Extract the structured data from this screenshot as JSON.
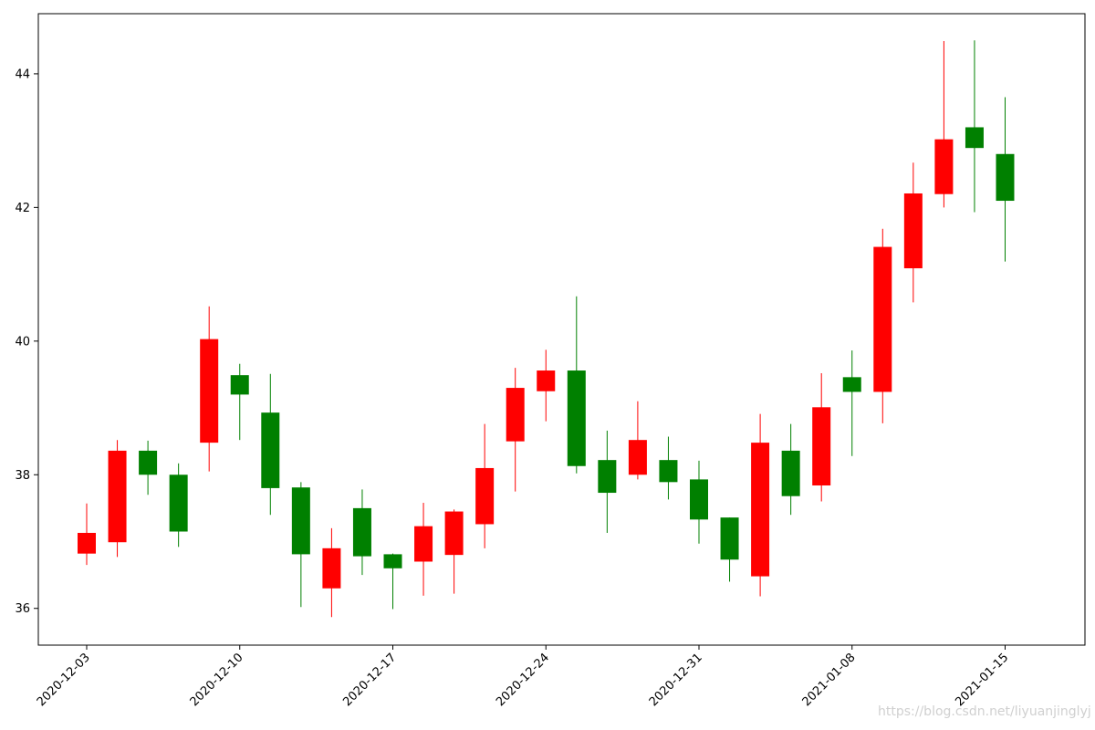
{
  "chart_data": {
    "type": "candlestick",
    "title": "",
    "xlabel": "",
    "ylabel": "",
    "ylim": [
      35.45,
      44.9
    ],
    "y_ticks": [
      36,
      38,
      40,
      42,
      44
    ],
    "y_tick_labels": [
      "36",
      "38",
      "40",
      "42",
      "44"
    ],
    "x_tick_labels": [
      "2020-12-03",
      "2020-12-10",
      "2020-12-17",
      "2020-12-24",
      "2020-12-31",
      "2021-01-08",
      "2021-01-15"
    ],
    "x_tick_candle_index": [
      0,
      5,
      10,
      15,
      20,
      25,
      30
    ],
    "up_color": "#ff0000",
    "down_color": "#008000",
    "grid": false,
    "candles": [
      {
        "open": 36.82,
        "high": 37.57,
        "low": 36.65,
        "close": 37.13
      },
      {
        "open": 36.99,
        "high": 38.52,
        "low": 36.77,
        "close": 38.36
      },
      {
        "open": 38.36,
        "high": 38.51,
        "low": 37.7,
        "close": 38.0
      },
      {
        "open": 38.0,
        "high": 38.17,
        "low": 36.92,
        "close": 37.15
      },
      {
        "open": 38.48,
        "high": 40.52,
        "low": 38.05,
        "close": 40.03
      },
      {
        "open": 39.49,
        "high": 39.66,
        "low": 38.52,
        "close": 39.2
      },
      {
        "open": 38.93,
        "high": 39.51,
        "low": 37.4,
        "close": 37.8
      },
      {
        "open": 37.81,
        "high": 37.89,
        "low": 36.02,
        "close": 36.81
      },
      {
        "open": 36.3,
        "high": 37.2,
        "low": 35.87,
        "close": 36.9
      },
      {
        "open": 37.5,
        "high": 37.78,
        "low": 36.5,
        "close": 36.78
      },
      {
        "open": 36.81,
        "high": 36.82,
        "low": 35.99,
        "close": 36.6
      },
      {
        "open": 36.7,
        "high": 37.58,
        "low": 36.19,
        "close": 37.23
      },
      {
        "open": 36.8,
        "high": 37.48,
        "low": 36.22,
        "close": 37.45
      },
      {
        "open": 37.26,
        "high": 38.76,
        "low": 36.9,
        "close": 38.1
      },
      {
        "open": 38.5,
        "high": 39.6,
        "low": 37.75,
        "close": 39.3
      },
      {
        "open": 39.25,
        "high": 39.87,
        "low": 38.8,
        "close": 39.56
      },
      {
        "open": 39.56,
        "high": 40.67,
        "low": 38.02,
        "close": 38.13
      },
      {
        "open": 38.22,
        "high": 38.66,
        "low": 37.13,
        "close": 37.73
      },
      {
        "open": 38.0,
        "high": 39.1,
        "low": 37.93,
        "close": 38.52
      },
      {
        "open": 38.22,
        "high": 38.57,
        "low": 37.63,
        "close": 37.89
      },
      {
        "open": 37.93,
        "high": 38.21,
        "low": 36.97,
        "close": 37.33
      },
      {
        "open": 37.36,
        "high": 37.36,
        "low": 36.4,
        "close": 36.73
      },
      {
        "open": 36.48,
        "high": 38.91,
        "low": 36.18,
        "close": 38.48
      },
      {
        "open": 38.36,
        "high": 38.76,
        "low": 37.4,
        "close": 37.68
      },
      {
        "open": 37.84,
        "high": 39.52,
        "low": 37.6,
        "close": 39.01
      },
      {
        "open": 39.46,
        "high": 39.86,
        "low": 38.28,
        "close": 39.24
      },
      {
        "open": 39.24,
        "high": 41.68,
        "low": 38.77,
        "close": 41.41
      },
      {
        "open": 41.09,
        "high": 42.67,
        "low": 40.58,
        "close": 42.21
      },
      {
        "open": 42.2,
        "high": 44.49,
        "low": 42.0,
        "close": 43.02
      },
      {
        "open": 43.2,
        "high": 44.5,
        "low": 41.93,
        "close": 42.89
      },
      {
        "open": 42.8,
        "high": 43.65,
        "low": 41.19,
        "close": 42.1
      }
    ]
  },
  "watermark": "https://blog.csdn.net/liyuanjinglyj"
}
